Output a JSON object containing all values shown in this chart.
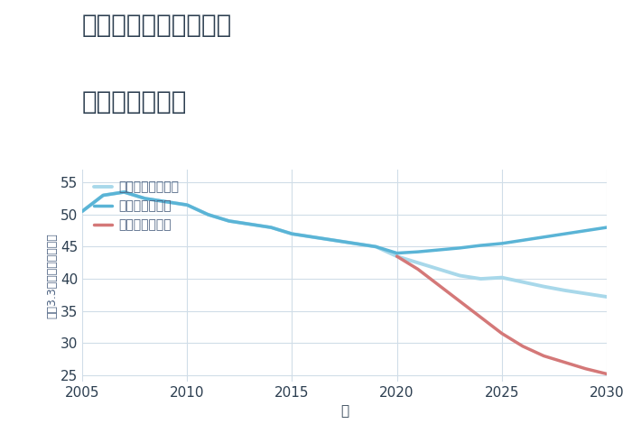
{
  "title_line1": "兵庫県姫路市農人町の",
  "title_line2": "土地の価格推移",
  "xlabel": "年",
  "ylabel": "平（3.3㎡）単価（万円）",
  "xlim": [
    2005,
    2030
  ],
  "ylim": [
    24,
    57
  ],
  "yticks": [
    25,
    30,
    35,
    40,
    45,
    50,
    55
  ],
  "xticks": [
    2005,
    2010,
    2015,
    2020,
    2025,
    2030
  ],
  "background_color": "#ffffff",
  "plot_background": "#ffffff",
  "good_scenario": {
    "label": "グッドシナリオ",
    "color": "#5ab4d6",
    "linewidth": 2.5,
    "x": [
      2005,
      2006,
      2007,
      2008,
      2009,
      2010,
      2011,
      2012,
      2013,
      2014,
      2015,
      2016,
      2017,
      2018,
      2019,
      2020,
      2021,
      2022,
      2023,
      2024,
      2025,
      2026,
      2027,
      2028,
      2029,
      2030
    ],
    "y": [
      50.5,
      53.0,
      53.5,
      52.5,
      52.0,
      51.5,
      50.0,
      49.0,
      48.5,
      48.0,
      47.0,
      46.5,
      46.0,
      45.5,
      45.0,
      44.0,
      44.2,
      44.5,
      44.8,
      45.2,
      45.5,
      46.0,
      46.5,
      47.0,
      47.5,
      48.0
    ]
  },
  "bad_scenario": {
    "label": "バッドシナリオ",
    "color": "#d47878",
    "linewidth": 2.5,
    "x": [
      2020,
      2021,
      2022,
      2023,
      2024,
      2025,
      2026,
      2027,
      2028,
      2029,
      2030
    ],
    "y": [
      43.5,
      41.5,
      39.0,
      36.5,
      34.0,
      31.5,
      29.5,
      28.0,
      27.0,
      26.0,
      25.2
    ]
  },
  "normal_scenario": {
    "label": "ノーマルシナリオ",
    "color": "#a8d8ea",
    "linewidth": 2.8,
    "x": [
      2005,
      2006,
      2007,
      2008,
      2009,
      2010,
      2011,
      2012,
      2013,
      2014,
      2015,
      2016,
      2017,
      2018,
      2019,
      2020,
      2021,
      2022,
      2023,
      2024,
      2025,
      2026,
      2027,
      2028,
      2029,
      2030
    ],
    "y": [
      50.5,
      53.0,
      53.5,
      52.5,
      52.0,
      51.5,
      50.0,
      49.0,
      48.5,
      48.0,
      47.0,
      46.5,
      46.0,
      45.5,
      45.0,
      43.5,
      42.5,
      41.5,
      40.5,
      40.0,
      40.2,
      39.5,
      38.8,
      38.2,
      37.7,
      37.2
    ]
  },
  "grid_color": "#d0dde8",
  "title_color": "#2c3e50",
  "legend_color": "#4a6080",
  "legend_fontsize": 10,
  "title_fontsize": 20,
  "tick_fontsize": 11
}
